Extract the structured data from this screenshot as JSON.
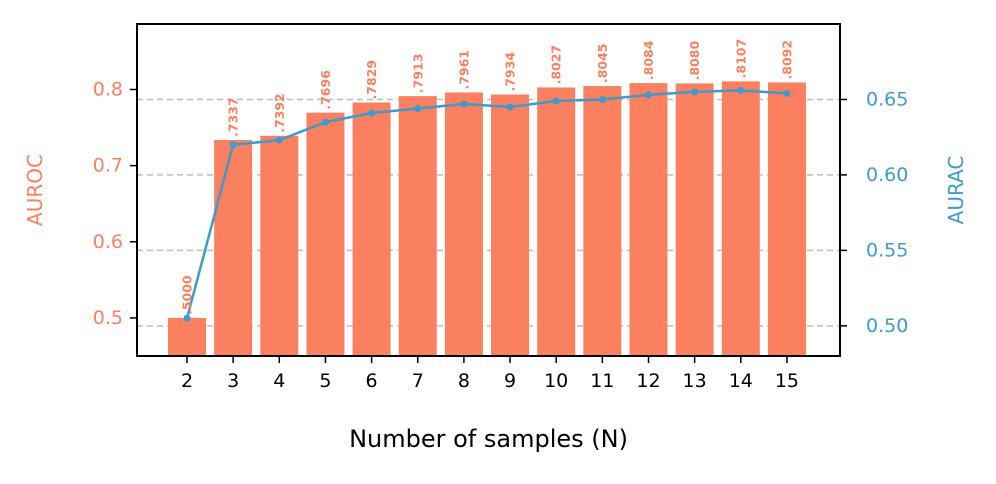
{
  "chart_data": {
    "type": "bar",
    "title": "",
    "xlabel": "Number of samples (N)",
    "categories": [
      "2",
      "3",
      "4",
      "5",
      "6",
      "7",
      "8",
      "9",
      "10",
      "11",
      "12",
      "13",
      "14",
      "15"
    ],
    "series": [
      {
        "name": "AUROC",
        "type": "bar",
        "axis": "left",
        "color": "#FA8060",
        "values": [
          0.5,
          0.7337,
          0.7392,
          0.7696,
          0.7829,
          0.7913,
          0.7961,
          0.7934,
          0.8027,
          0.8045,
          0.8084,
          0.808,
          0.8107,
          0.8092
        ],
        "labels": [
          ".5000",
          ".7337",
          ".7392",
          ".7696",
          ".7829",
          ".7913",
          ".7961",
          ".7934",
          ".8027",
          ".8045",
          ".8084",
          ".8080",
          ".8107",
          ".8092"
        ]
      },
      {
        "name": "AURAC",
        "type": "line",
        "axis": "right",
        "color": "#3E9BCB",
        "values": [
          0.505,
          0.62,
          0.623,
          0.635,
          0.641,
          0.644,
          0.647,
          0.645,
          0.649,
          0.65,
          0.653,
          0.655,
          0.656,
          0.654
        ]
      }
    ],
    "y_left": {
      "label": "AUROC",
      "ylim": [
        0.45,
        0.886
      ],
      "ticks": [
        0.5,
        0.6,
        0.7,
        0.8
      ],
      "tick_labels": [
        "0.5",
        "0.6",
        "0.7",
        "0.8"
      ]
    },
    "y_right": {
      "label": "AURAC",
      "ylim": [
        0.48,
        0.7
      ],
      "ticks": [
        0.5,
        0.55,
        0.6,
        0.65
      ],
      "tick_labels": [
        "0.50",
        "0.55",
        "0.60",
        "0.65"
      ]
    },
    "grid": "horizontal dashed at right-axis ticks",
    "colors": {
      "grid": "#BDBDBD",
      "axis": "#000000"
    }
  }
}
